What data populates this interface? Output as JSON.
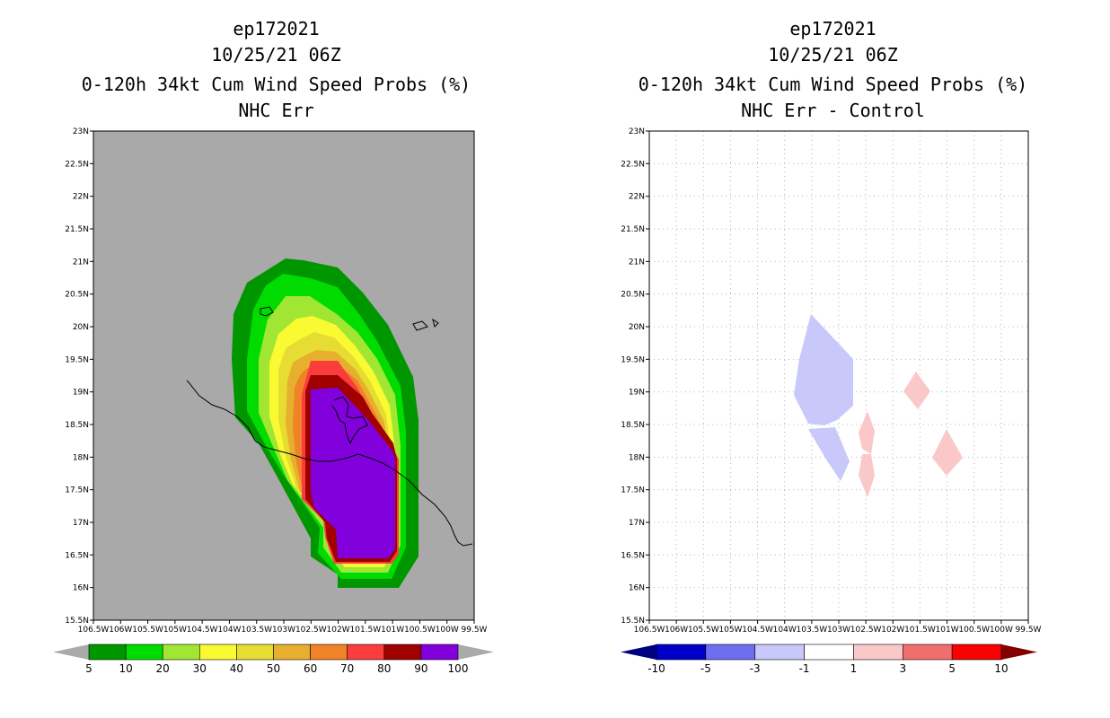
{
  "left_panel": {
    "title_lines": [
      "ep172021",
      "10/25/21 06Z",
      "0-120h 34kt Cum Wind Speed Probs (%)",
      "NHC Err"
    ],
    "colorbar": {
      "colors": [
        "#009600",
        "#00dc00",
        "#a0e632",
        "#fafa32",
        "#e6dc32",
        "#e6af2d",
        "#f08228",
        "#fa3c3c",
        "#a00000",
        "#8200dc"
      ],
      "under_color": "#aaaaaa",
      "over_color": "#aaaaaa",
      "labels": [
        "5",
        "10",
        "20",
        "30",
        "40",
        "50",
        "60",
        "70",
        "80",
        "90",
        "100"
      ]
    }
  },
  "right_panel": {
    "title_lines": [
      "ep172021",
      "10/25/21 06Z",
      "0-120h 34kt Cum Wind Speed Probs (%)",
      "NHC Err - Control"
    ],
    "colorbar": {
      "colors": [
        "#0000c8",
        "#6e6ef0",
        "#c8c8fa",
        "#ffffff",
        "#fac8c8",
        "#f06e6e",
        "#fa0000"
      ],
      "under_color": "#000082",
      "over_color": "#820000",
      "labels": [
        "-10",
        "-5",
        "-3",
        "-1",
        "1",
        "3",
        "5",
        "10"
      ]
    }
  },
  "map": {
    "lat_labels": [
      "23N",
      "22.5N",
      "22N",
      "21.5N",
      "21N",
      "20.5N",
      "20N",
      "19.5N",
      "19N",
      "18.5N",
      "18N",
      "17.5N",
      "17N",
      "16.5N",
      "16N",
      "15.5N"
    ],
    "lon_labels": [
      "106.5W",
      "106W",
      "105.5W",
      "105W",
      "104.5W",
      "104W",
      "103.5W",
      "103W",
      "102.5W",
      "102W",
      "101.5W",
      "101W",
      "100.5W",
      "100W",
      "99.5W"
    ],
    "land_fill": "#a9a9a9"
  }
}
